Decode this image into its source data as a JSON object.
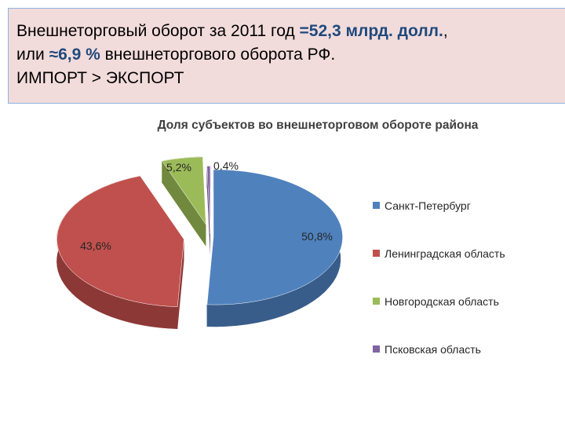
{
  "header": {
    "line1_prefix": "Внешнеторговый оборот  за 2011 год ",
    "line1_value": "=52,3 млрд. долл.",
    "line1_suffix": ",",
    "line2_prefix": "или ",
    "line2_value": "≈6,9 %",
    "line2_suffix": " внешнеторгового оборота РФ.",
    "line3": "ИМПОРТ > ЭКСПОРТ"
  },
  "chart_data": {
    "type": "pie",
    "variant": "3d-exploded",
    "title": "Доля субъектов во внешнеторговом обороте района",
    "legend_position": "right",
    "series": [
      {
        "name": "Санкт-Петербург",
        "value": 50.8,
        "label": "50,8%",
        "color": "#4f81bd",
        "side_color": "#385d8a"
      },
      {
        "name": "Ленинградская область",
        "value": 43.6,
        "label": "43,6%",
        "color": "#c0504d",
        "side_color": "#8c3836"
      },
      {
        "name": "Новгородская область",
        "value": 5.2,
        "label": "5,2%",
        "color": "#9bbb59",
        "side_color": "#71893f"
      },
      {
        "name": "Псковская область",
        "value": 0.4,
        "label": "0,4%",
        "color": "#8064a2",
        "side_color": "#5c4776"
      }
    ]
  }
}
